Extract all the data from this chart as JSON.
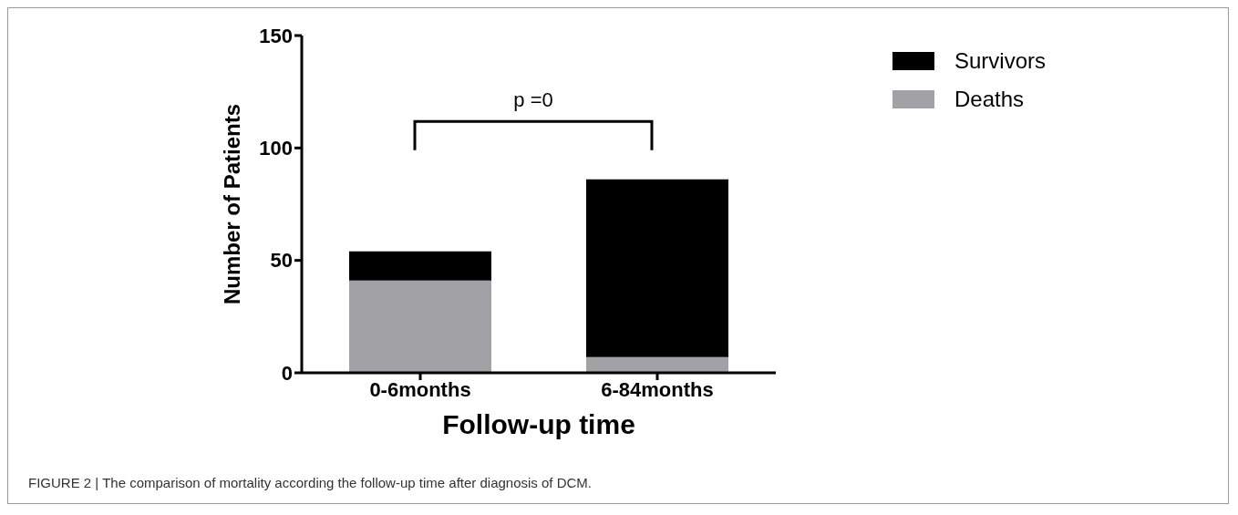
{
  "chart_data": {
    "type": "bar",
    "xlabel": "Follow-up time",
    "ylabel": "Number of Patients",
    "categories": [
      "0-6months",
      "6-84months"
    ],
    "stacked": true,
    "series": [
      {
        "name": "Deaths",
        "color": "#a2a1a6",
        "values": [
          41,
          7
        ]
      },
      {
        "name": "Survivors",
        "color": "#000000",
        "values": [
          13,
          79
        ]
      }
    ],
    "ylim": [
      0,
      150
    ],
    "yticks": [
      0,
      50,
      100,
      150
    ],
    "grid": false,
    "legend": "top right",
    "annotations": [
      "p =0",
      "FIGURE 2 | The comparison of mortality according the follow-up time after diagnosis of DCM."
    ]
  }
}
